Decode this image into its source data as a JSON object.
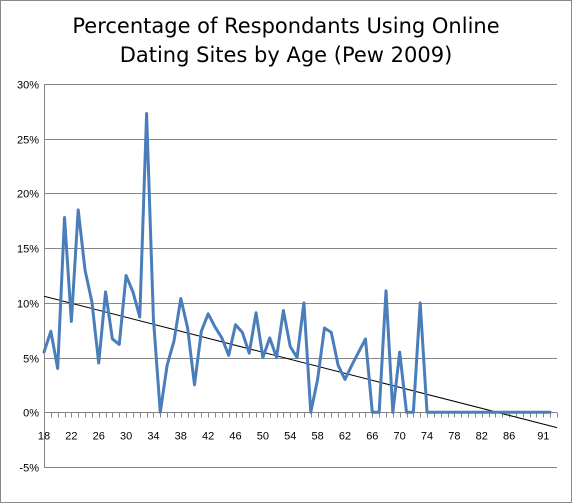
{
  "chart_data": {
    "type": "line",
    "title": "Percentage of Respondants Using Online Dating Sites by Age (Pew 2009)",
    "title_lines": [
      "Percentage of Respondants Using Online",
      "Dating Sites by Age (Pew 2009)"
    ],
    "xlabel": "",
    "ylabel": "",
    "ylim": [
      -5,
      30
    ],
    "y_ticks": [
      "-5%",
      "0%",
      "5%",
      "10%",
      "15%",
      "20%",
      "25%",
      "30%"
    ],
    "y_tick_values": [
      -5,
      0,
      5,
      10,
      15,
      20,
      25,
      30
    ],
    "x_ticks": [
      "18",
      "22",
      "26",
      "30",
      "34",
      "38",
      "42",
      "46",
      "50",
      "54",
      "58",
      "62",
      "66",
      "70",
      "74",
      "78",
      "82",
      "86",
      "91"
    ],
    "grid": "horizontal",
    "legend": "none",
    "series": [
      {
        "x": [
          18,
          19,
          20,
          21,
          22,
          23,
          24,
          25,
          26,
          27,
          28,
          29,
          30,
          31,
          32,
          33,
          34,
          35,
          36,
          37,
          38,
          39,
          40,
          41,
          42,
          43,
          44,
          45,
          46,
          47,
          48,
          49,
          50,
          51,
          52,
          53,
          54,
          55,
          56,
          57,
          58,
          59,
          60,
          61,
          62,
          63,
          64,
          65,
          66,
          67,
          68,
          69,
          70,
          71,
          72,
          73,
          74,
          75,
          76,
          77,
          78,
          79,
          80,
          81,
          82,
          83,
          84,
          85,
          86,
          87,
          88,
          89,
          90,
          91,
          92
        ],
        "values": [
          5.5,
          7.4,
          4.0,
          17.8,
          8.3,
          18.5,
          13.0,
          10.1,
          4.5,
          11.0,
          6.7,
          6.2,
          12.5,
          11.0,
          8.7,
          27.3,
          8.5,
          0.0,
          4.3,
          6.5,
          10.4,
          7.7,
          2.5,
          7.4,
          9.0,
          7.8,
          6.8,
          5.2,
          8.0,
          7.3,
          5.4,
          9.1,
          5.0,
          6.8,
          5.0,
          9.3,
          6.0,
          5.0,
          10.0,
          0.0,
          3.0,
          7.7,
          7.3,
          4.3,
          3.0,
          4.3,
          5.5,
          6.7,
          0.0,
          0.0,
          11.1,
          0.0,
          5.5,
          0.0,
          0.0,
          10.0,
          0.0,
          0,
          0,
          0,
          0,
          0,
          0,
          0,
          0,
          0,
          0,
          0,
          0,
          0,
          0,
          0,
          0,
          0,
          0
        ],
        "color": "#4a7ebb"
      }
    ],
    "trendline": {
      "type": "linear",
      "x": [
        18,
        93
      ],
      "values": [
        10.6,
        -1.4
      ],
      "color": "#000000"
    }
  }
}
